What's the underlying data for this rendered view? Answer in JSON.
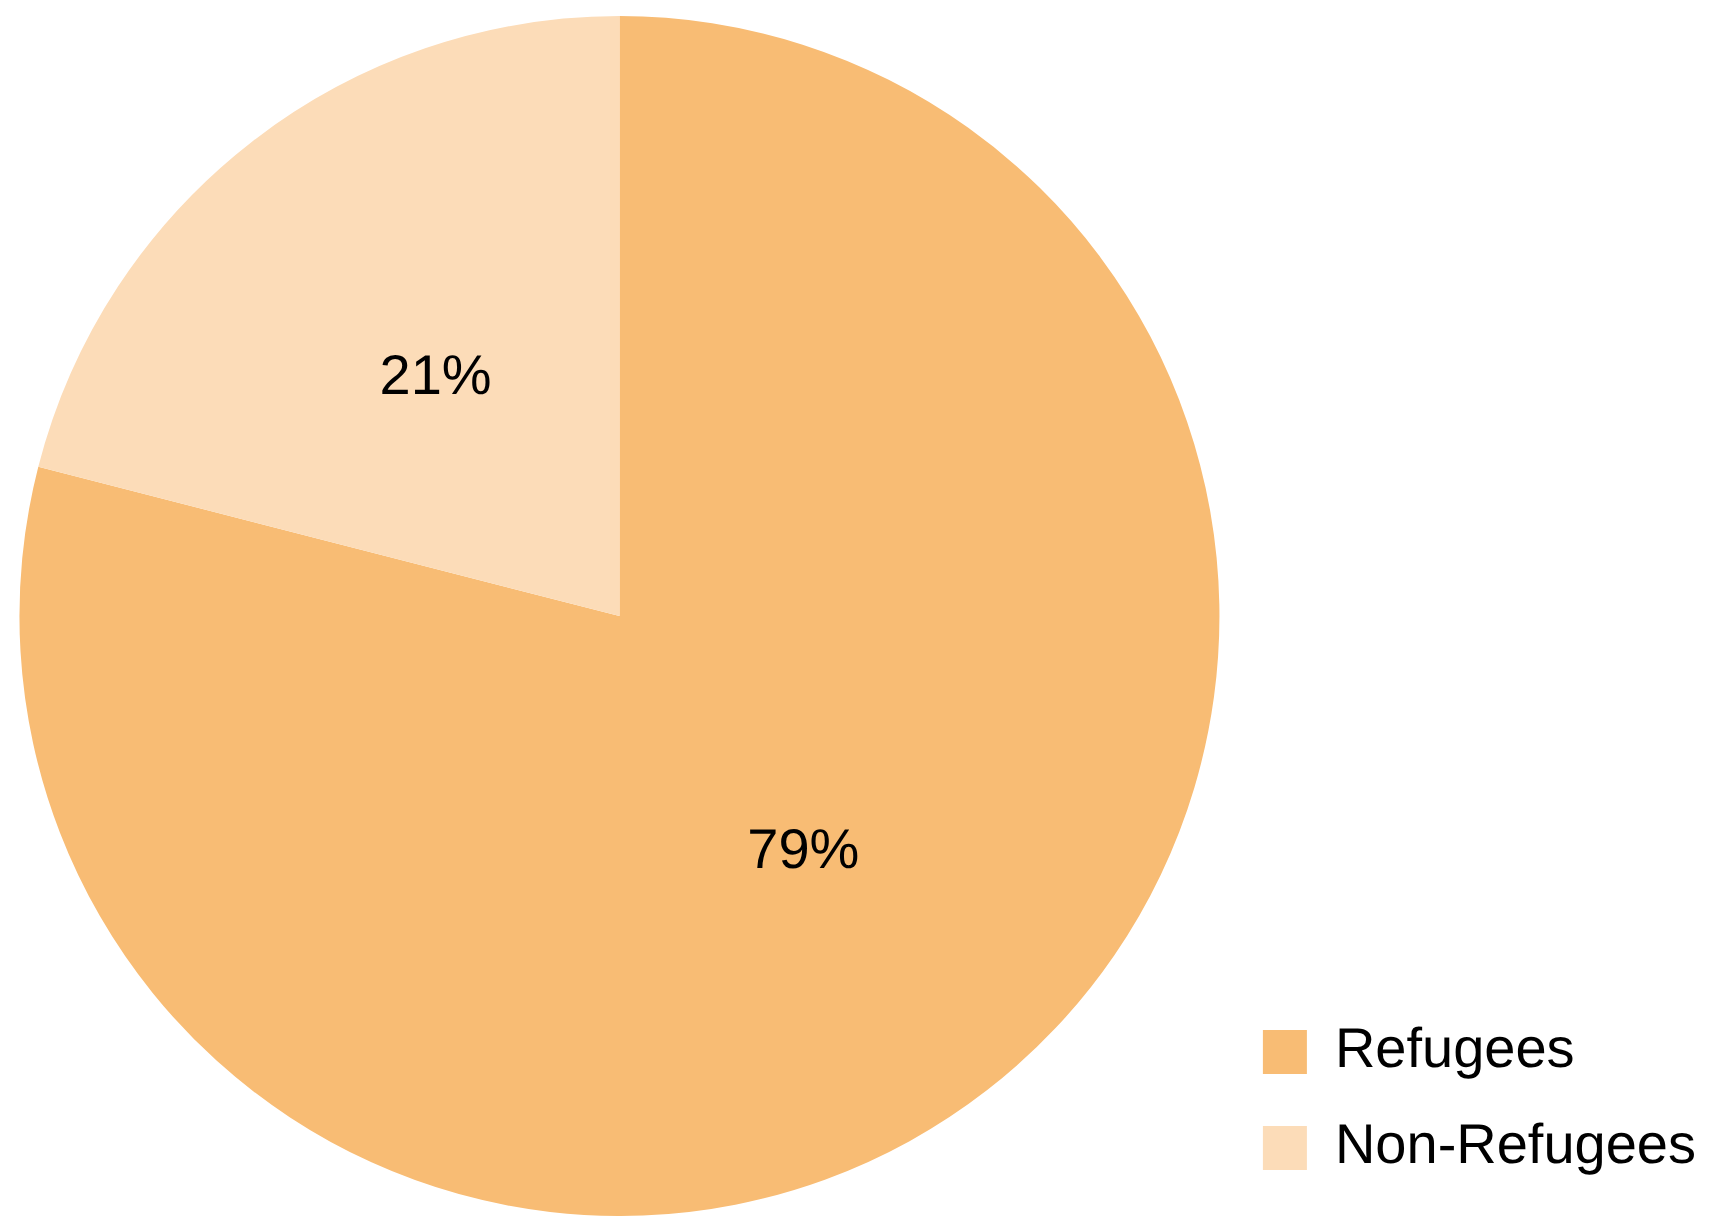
{
  "chart_data": {
    "type": "pie",
    "categories": [
      "Refugees",
      "Non-Refugees"
    ],
    "values": [
      79,
      21
    ],
    "colors": [
      "#f8bc74",
      "#fcdcb8"
    ],
    "value_labels": [
      "79%",
      "21%"
    ],
    "legend": "bottom right"
  }
}
